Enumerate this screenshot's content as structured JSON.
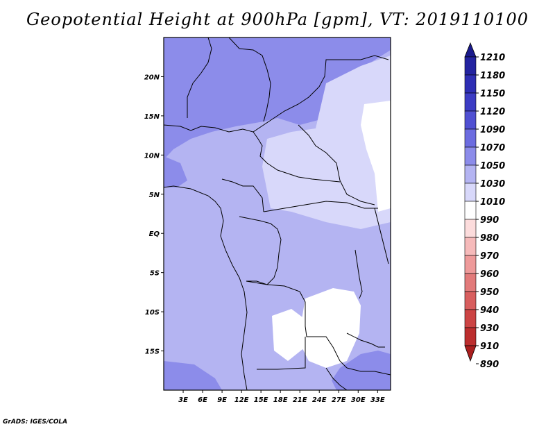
{
  "title": "Geopotential Height at 900hPa [gpm], VT: 2019110100",
  "credit": "GrADS: IGES/COLA",
  "map": {
    "lat_range": [
      -20,
      25
    ],
    "lon_range": [
      0,
      35
    ],
    "x_ticks": [
      "3E",
      "6E",
      "9E",
      "12E",
      "15E",
      "18E",
      "21E",
      "24E",
      "27E",
      "30E",
      "33E"
    ],
    "y_ticks": [
      "20N",
      "15N",
      "10N",
      "5N",
      "EQ",
      "5S",
      "10S",
      "15S"
    ]
  },
  "colorbar": {
    "levels": [
      "1210",
      "1180",
      "1150",
      "1120",
      "1090",
      "1070",
      "1050",
      "1030",
      "1010",
      "990",
      "980",
      "970",
      "960",
      "950",
      "940",
      "930",
      "910",
      "890"
    ],
    "colors": [
      "#1a1a8c",
      "#2323a0",
      "#2e2eb4",
      "#3c3cc4",
      "#5050d2",
      "#6c6ce0",
      "#8c8cea",
      "#b4b4f2",
      "#d8d8fa",
      "#ffffff",
      "#fcdcdc",
      "#f6baba",
      "#ee9a9a",
      "#e27a7a",
      "#d85e5e",
      "#cc4444",
      "#bc2e2e",
      "#aa1e1e"
    ]
  },
  "field_colors": {
    "c1050": "#8c8cea",
    "c1030": "#b4b4f2",
    "c1010": "#d8d8fa",
    "c990": "#ffffff"
  }
}
